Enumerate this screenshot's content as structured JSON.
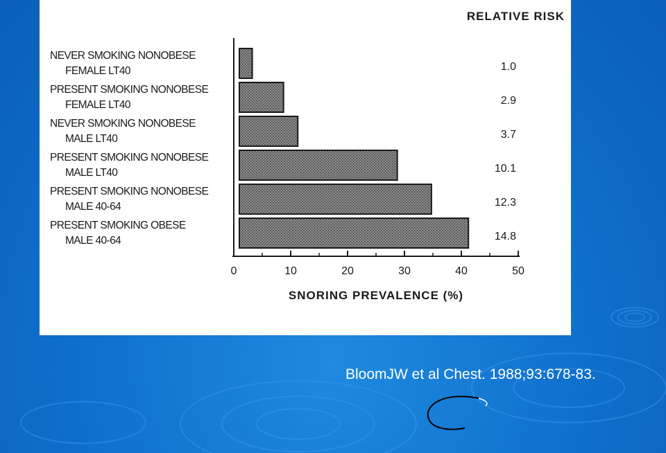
{
  "citation": "BloomJW et al Chest. 1988;93:678-83.",
  "colors": {
    "background": "#0f6fcc",
    "panel": "#ffffff",
    "bar_fill": "#6e6e6e",
    "ink": "#1a1a1a",
    "citation_text": "#ffffff"
  },
  "chart_data": {
    "type": "bar",
    "orientation": "horizontal",
    "title": "",
    "xlabel": "SNORING PREVALENCE (%)",
    "ylabel": "",
    "xlim": [
      0,
      50
    ],
    "xticks": [
      "0",
      "10",
      "20",
      "30",
      "40",
      "50"
    ],
    "grid": false,
    "annotation_header": "RELATIVE RISK",
    "categories": [
      [
        "NEVER SMOKING NONOBESE",
        "FEMALE LT40"
      ],
      [
        "PRESENT SMOKING NONOBESE",
        "FEMALE LT40"
      ],
      [
        "NEVER SMOKING NONOBESE",
        "MALE LT40"
      ],
      [
        "PRESENT SMOKING NONOBESE",
        "MALE LT40"
      ],
      [
        "PRESENT SMOKING NONOBESE",
        "MALE 40-64"
      ],
      [
        "PRESENT SMOKING OBESE",
        "MALE 40-64"
      ]
    ],
    "values": [
      3,
      8.5,
      11,
      28.5,
      34.5,
      41
    ],
    "relative_risk": [
      "1.0",
      "2.9",
      "3.7",
      "10.1",
      "12.3",
      "14.8"
    ]
  }
}
